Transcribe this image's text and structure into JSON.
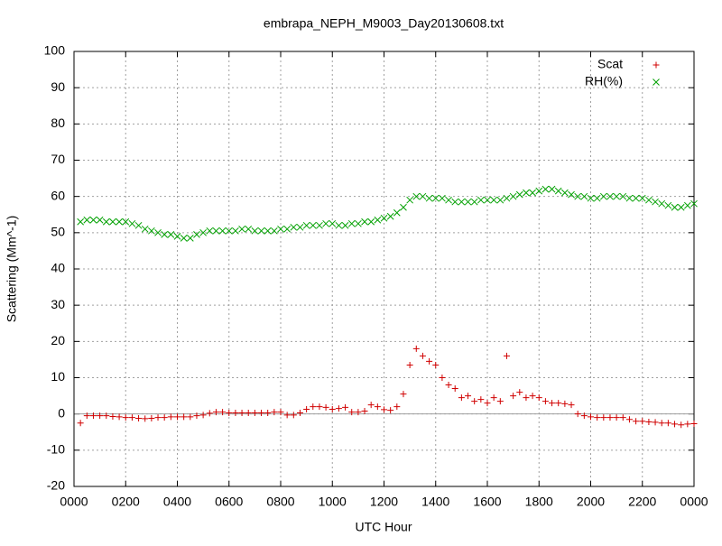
{
  "chart_data": {
    "type": "scatter",
    "title": "embrapa_NEPH_M9003_Day20130608.txt",
    "xlabel": "UTC Hour",
    "ylabel": "Scattering (Mm^-1)",
    "xlim": [
      0,
      24
    ],
    "ylim": [
      -20,
      100
    ],
    "xticks": [
      {
        "value": 0,
        "label": "0000"
      },
      {
        "value": 2,
        "label": "0200"
      },
      {
        "value": 4,
        "label": "0400"
      },
      {
        "value": 6,
        "label": "0600"
      },
      {
        "value": 8,
        "label": "0800"
      },
      {
        "value": 10,
        "label": "1000"
      },
      {
        "value": 12,
        "label": "1200"
      },
      {
        "value": 14,
        "label": "1400"
      },
      {
        "value": 16,
        "label": "1600"
      },
      {
        "value": 18,
        "label": "1800"
      },
      {
        "value": 20,
        "label": "2000"
      },
      {
        "value": 22,
        "label": "2200"
      },
      {
        "value": 24,
        "label": "0000"
      }
    ],
    "yticks": [
      -20,
      -10,
      0,
      10,
      20,
      30,
      40,
      50,
      60,
      70,
      80,
      90,
      100
    ],
    "grid": true,
    "legend": "top-right",
    "x": [
      0.25,
      0.5,
      0.75,
      1,
      1.25,
      1.5,
      1.75,
      2,
      2.25,
      2.5,
      2.75,
      3,
      3.25,
      3.5,
      3.75,
      4,
      4.25,
      4.5,
      4.75,
      5,
      5.25,
      5.5,
      5.75,
      6,
      6.25,
      6.5,
      6.75,
      7,
      7.25,
      7.5,
      7.75,
      8,
      8.25,
      8.5,
      8.75,
      9,
      9.25,
      9.5,
      9.75,
      10,
      10.25,
      10.5,
      10.75,
      11,
      11.25,
      11.5,
      11.75,
      12,
      12.25,
      12.5,
      12.75,
      13,
      13.25,
      13.5,
      13.75,
      14,
      14.25,
      14.5,
      14.75,
      15,
      15.25,
      15.5,
      15.75,
      16,
      16.25,
      16.5,
      16.75,
      17,
      17.25,
      17.5,
      17.75,
      18,
      18.25,
      18.5,
      18.75,
      19,
      19.25,
      19.5,
      19.75,
      20,
      20.25,
      20.5,
      20.75,
      21,
      21.25,
      21.5,
      21.75,
      22,
      22.25,
      22.5,
      22.75,
      23,
      23.25,
      23.5,
      23.75,
      24
    ],
    "series": [
      {
        "name": "Scat",
        "color": "#d00000",
        "marker": "plus",
        "values": [
          -2.5,
          -0.5,
          -0.5,
          -0.5,
          -0.5,
          -0.7,
          -0.8,
          -1,
          -1,
          -1.2,
          -1.3,
          -1.2,
          -1,
          -1,
          -0.8,
          -0.8,
          -0.8,
          -0.8,
          -0.5,
          -0.3,
          0.2,
          0.5,
          0.5,
          0.3,
          0.3,
          0.3,
          0.3,
          0.3,
          0.3,
          0.3,
          0.5,
          0.5,
          -0.3,
          -0.3,
          0.3,
          1.3,
          2,
          2,
          1.8,
          1.3,
          1.5,
          1.8,
          0.5,
          0.5,
          0.8,
          2.5,
          2,
          1.2,
          1,
          2,
          5.5,
          13.5,
          18,
          16,
          14.5,
          13.5,
          10,
          8,
          7,
          4.5,
          5,
          3.5,
          4,
          3,
          4.5,
          3.5,
          16,
          5,
          6,
          4.5,
          5,
          4.5,
          3.5,
          3,
          3,
          2.8,
          2.5,
          0,
          -0.5,
          -0.8,
          -1,
          -1,
          -1,
          -1,
          -1,
          -1.5,
          -2,
          -2,
          -2.2,
          -2.3,
          -2.5,
          -2.5,
          -2.8,
          -3,
          -2.8,
          -2.7
        ]
      },
      {
        "name": "RH(%)",
        "color": "#00a000",
        "marker": "cross",
        "values": [
          53,
          53.5,
          53.5,
          53.5,
          53,
          53,
          53,
          53,
          52.5,
          52,
          51,
          50.5,
          50,
          49.5,
          49.5,
          49,
          48.5,
          48.5,
          49.5,
          50,
          50.5,
          50.5,
          50.5,
          50.5,
          50.5,
          51,
          51,
          50.5,
          50.5,
          50.5,
          50.5,
          51,
          51,
          51.5,
          51.5,
          52,
          52,
          52,
          52.5,
          52.5,
          52,
          52,
          52.5,
          52.5,
          53,
          53,
          53.5,
          54,
          54.5,
          55.5,
          57,
          59,
          60,
          60,
          59.5,
          59.5,
          59.5,
          59,
          58.5,
          58.5,
          58.5,
          58.5,
          59,
          59,
          59,
          59,
          59.5,
          60,
          60.5,
          61,
          61,
          61.5,
          62,
          62,
          61.5,
          61,
          60.5,
          60,
          60,
          59.5,
          59.5,
          60,
          60,
          60,
          60,
          59.5,
          59.5,
          59.5,
          59,
          58.5,
          58,
          57.5,
          57,
          57,
          57.5,
          58
        ]
      }
    ]
  }
}
